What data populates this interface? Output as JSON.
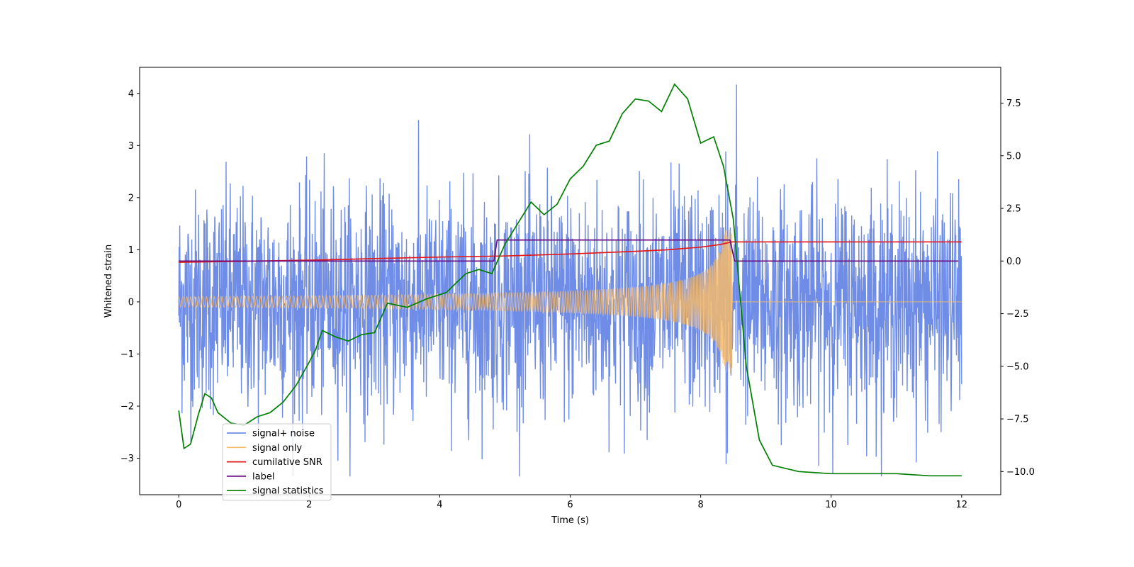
{
  "chart_data": {
    "type": "line",
    "title": "",
    "xlabel": "Time (s)",
    "ylabel": "Whitened strain",
    "y2label": "",
    "xlim": [
      -0.6,
      12.6
    ],
    "ylim": [
      -3.7,
      4.5
    ],
    "y2lim": [
      -11.1,
      9.2
    ],
    "xticks": [
      0,
      2,
      4,
      6,
      8,
      10,
      12
    ],
    "yticks": [
      -3,
      -2,
      -1,
      0,
      1,
      2,
      3,
      4
    ],
    "y2ticks": [
      -10.0,
      -7.5,
      -5.0,
      -2.5,
      0.0,
      2.5,
      5.0,
      7.5
    ],
    "xtick_labels": [
      "0",
      "2",
      "4",
      "6",
      "8",
      "10",
      "12"
    ],
    "ytick_labels": [
      "−3",
      "−2",
      "−1",
      "0",
      "1",
      "2",
      "3",
      "4"
    ],
    "y2tick_labels": [
      "−10.0",
      "−7.5",
      "−5.0",
      "−2.5",
      "0.0",
      "2.5",
      "5.0",
      "7.5"
    ],
    "grid": false,
    "legend_position": "lower-left",
    "series": [
      {
        "name": "signal+ noise",
        "color": "#6f8de6",
        "axis": "left",
        "kind": "noise",
        "t_start": 0,
        "t_end": 12,
        "approx_range": [
          -3.35,
          4.17
        ],
        "notable_peak": {
          "t": 8.55,
          "y": 4.17
        }
      },
      {
        "name": "signal only",
        "color": "#f5b96a",
        "axis": "left",
        "kind": "chirp",
        "t_start": 0,
        "t_merge": 8.48,
        "t_end": 12,
        "amplitude_start": 0.1,
        "amplitude_peak": 1.4
      },
      {
        "name": "cumilative SNR",
        "color": "#e31a1c",
        "axis": "left",
        "points": [
          [
            0,
            0.76
          ],
          [
            1,
            0.78
          ],
          [
            2,
            0.8
          ],
          [
            3,
            0.83
          ],
          [
            4,
            0.86
          ],
          [
            5,
            0.88
          ],
          [
            6,
            0.92
          ],
          [
            7,
            0.97
          ],
          [
            7.5,
            1.0
          ],
          [
            8,
            1.05
          ],
          [
            8.3,
            1.1
          ],
          [
            8.48,
            1.15
          ],
          [
            9,
            1.15
          ],
          [
            10,
            1.15
          ],
          [
            11,
            1.15
          ],
          [
            12,
            1.15
          ]
        ]
      },
      {
        "name": "label",
        "color": "#6a0d83",
        "axis": "right",
        "points": [
          [
            0,
            0
          ],
          [
            4.83,
            0
          ],
          [
            4.88,
            1
          ],
          [
            8.45,
            1
          ],
          [
            8.52,
            0
          ],
          [
            11.95,
            0
          ]
        ]
      },
      {
        "name": "signal statistics",
        "color": "#008000",
        "axis": "right",
        "points": [
          [
            0,
            -7.1
          ],
          [
            0.08,
            -8.9
          ],
          [
            0.18,
            -8.7
          ],
          [
            0.3,
            -7.3
          ],
          [
            0.4,
            -6.3
          ],
          [
            0.5,
            -6.5
          ],
          [
            0.6,
            -7.2
          ],
          [
            0.8,
            -7.7
          ],
          [
            1.0,
            -7.8
          ],
          [
            1.2,
            -7.4
          ],
          [
            1.4,
            -7.2
          ],
          [
            1.6,
            -6.7
          ],
          [
            1.8,
            -5.9
          ],
          [
            2.0,
            -4.8
          ],
          [
            2.1,
            -4.2
          ],
          [
            2.2,
            -3.3
          ],
          [
            2.4,
            -3.6
          ],
          [
            2.6,
            -3.8
          ],
          [
            2.8,
            -3.5
          ],
          [
            3.0,
            -3.4
          ],
          [
            3.2,
            -2.0
          ],
          [
            3.5,
            -2.2
          ],
          [
            3.8,
            -1.8
          ],
          [
            4.1,
            -1.5
          ],
          [
            4.4,
            -0.6
          ],
          [
            4.6,
            -0.4
          ],
          [
            4.8,
            -0.6
          ],
          [
            5.0,
            0.8
          ],
          [
            5.2,
            1.8
          ],
          [
            5.4,
            2.8
          ],
          [
            5.6,
            2.2
          ],
          [
            5.8,
            2.7
          ],
          [
            6.0,
            3.9
          ],
          [
            6.2,
            4.5
          ],
          [
            6.4,
            5.5
          ],
          [
            6.6,
            5.7
          ],
          [
            6.8,
            7.0
          ],
          [
            7.0,
            7.7
          ],
          [
            7.2,
            7.6
          ],
          [
            7.4,
            7.1
          ],
          [
            7.6,
            8.4
          ],
          [
            7.8,
            7.7
          ],
          [
            8.0,
            5.6
          ],
          [
            8.2,
            5.9
          ],
          [
            8.35,
            4.5
          ],
          [
            8.5,
            2.0
          ],
          [
            8.7,
            -5.0
          ],
          [
            8.9,
            -8.5
          ],
          [
            9.1,
            -9.7
          ],
          [
            9.5,
            -10.0
          ],
          [
            10.0,
            -10.1
          ],
          [
            10.5,
            -10.1
          ],
          [
            11.0,
            -10.1
          ],
          [
            11.5,
            -10.2
          ],
          [
            12.0,
            -10.2
          ]
        ]
      }
    ]
  }
}
